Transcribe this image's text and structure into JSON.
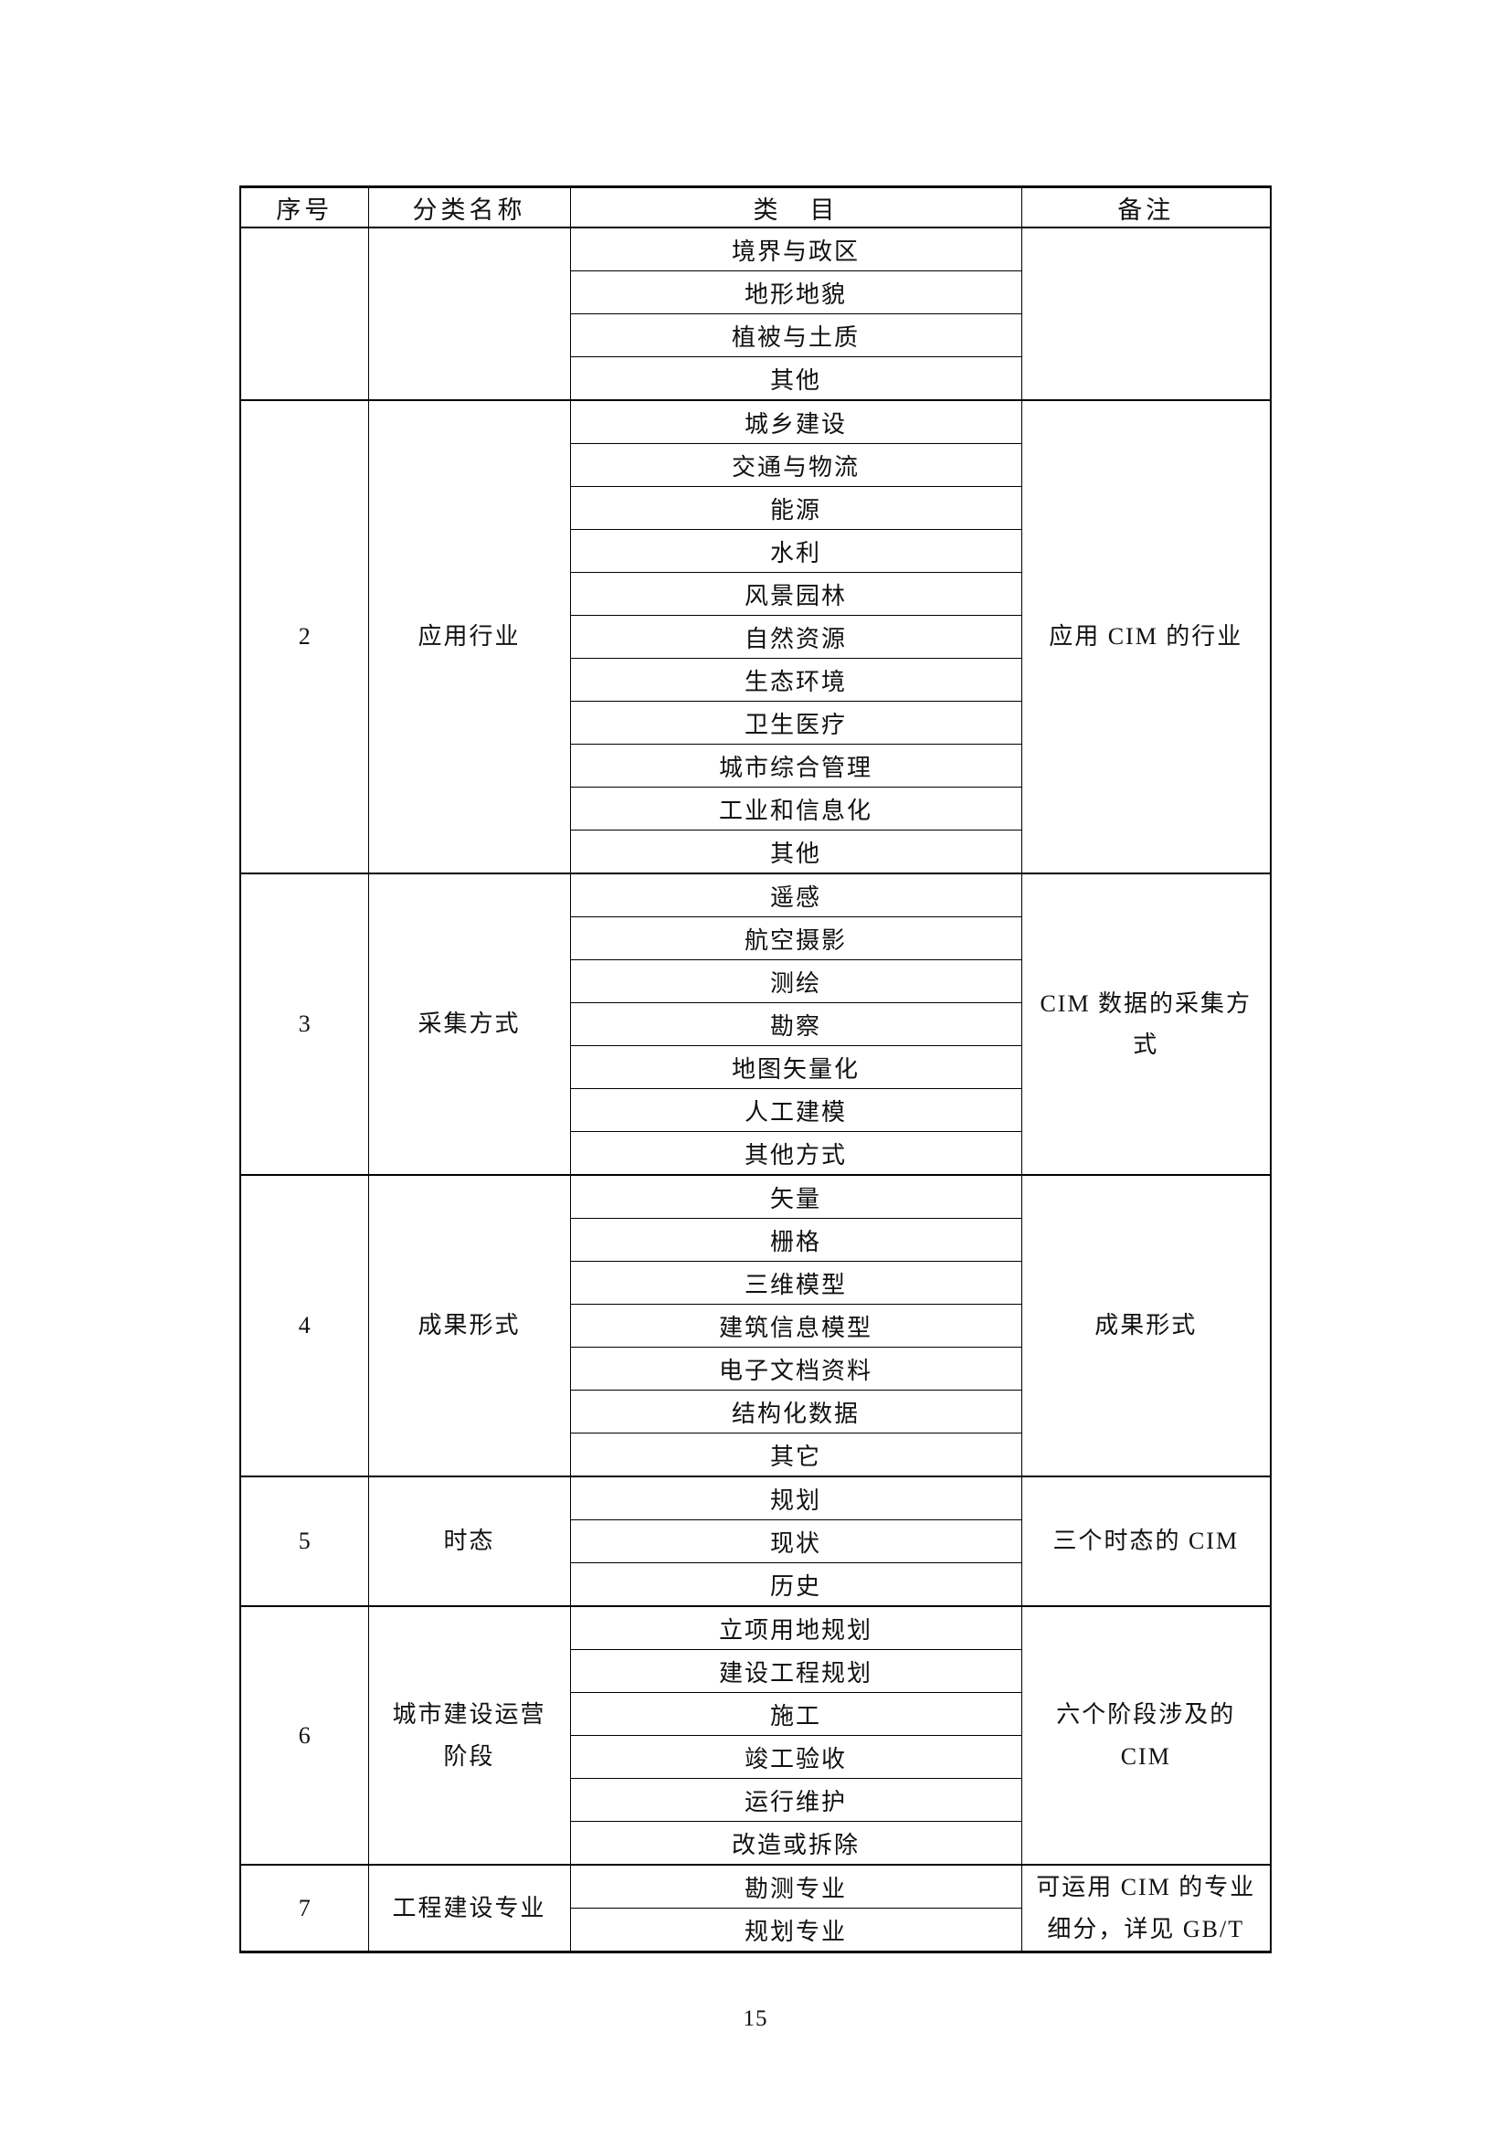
{
  "document": {
    "page_number": "15"
  },
  "colors": {
    "background": "#ffffff",
    "border": "#000000",
    "text": "#111111"
  },
  "table": {
    "header": [
      "序号",
      "分类名称",
      "类　目",
      "备注"
    ],
    "sections": [
      {
        "no": "",
        "name": "",
        "remark": "",
        "categories": [
          "境界与政区",
          "地形地貌",
          "植被与土质",
          "其他"
        ]
      },
      {
        "no": "2",
        "name": "应用行业",
        "remark": "应用 CIM 的行业",
        "categories": [
          "城乡建设",
          "交通与物流",
          "能源",
          "水利",
          "风景园林",
          "自然资源",
          "生态环境",
          "卫生医疗",
          "城市综合管理",
          "工业和信息化",
          "其他"
        ]
      },
      {
        "no": "3",
        "name": "采集方式",
        "remark": "CIM 数据的采集方式",
        "categories": [
          "遥感",
          "航空摄影",
          "测绘",
          "勘察",
          "地图矢量化",
          "人工建模",
          "其他方式"
        ]
      },
      {
        "no": "4",
        "name": "成果形式",
        "remark": "成果形式",
        "categories": [
          "矢量",
          "栅格",
          "三维模型",
          "建筑信息模型",
          "电子文档资料",
          "结构化数据",
          "其它"
        ]
      },
      {
        "no": "5",
        "name": "时态",
        "remark": "三个时态的 CIM",
        "categories": [
          "规划",
          "现状",
          "历史"
        ]
      },
      {
        "no": "6",
        "name": "城市建设运营阶段",
        "remark": "六个阶段涉及的 CIM",
        "categories": [
          "立项用地规划",
          "建设工程规划",
          "施工",
          "竣工验收",
          "运行维护",
          "改造或拆除"
        ]
      },
      {
        "no": "7",
        "name": "工程建设专业",
        "remark": "可运用 CIM 的专业细分，详见 GB/T",
        "categories": [
          "勘测专业",
          "规划专业"
        ]
      }
    ]
  }
}
